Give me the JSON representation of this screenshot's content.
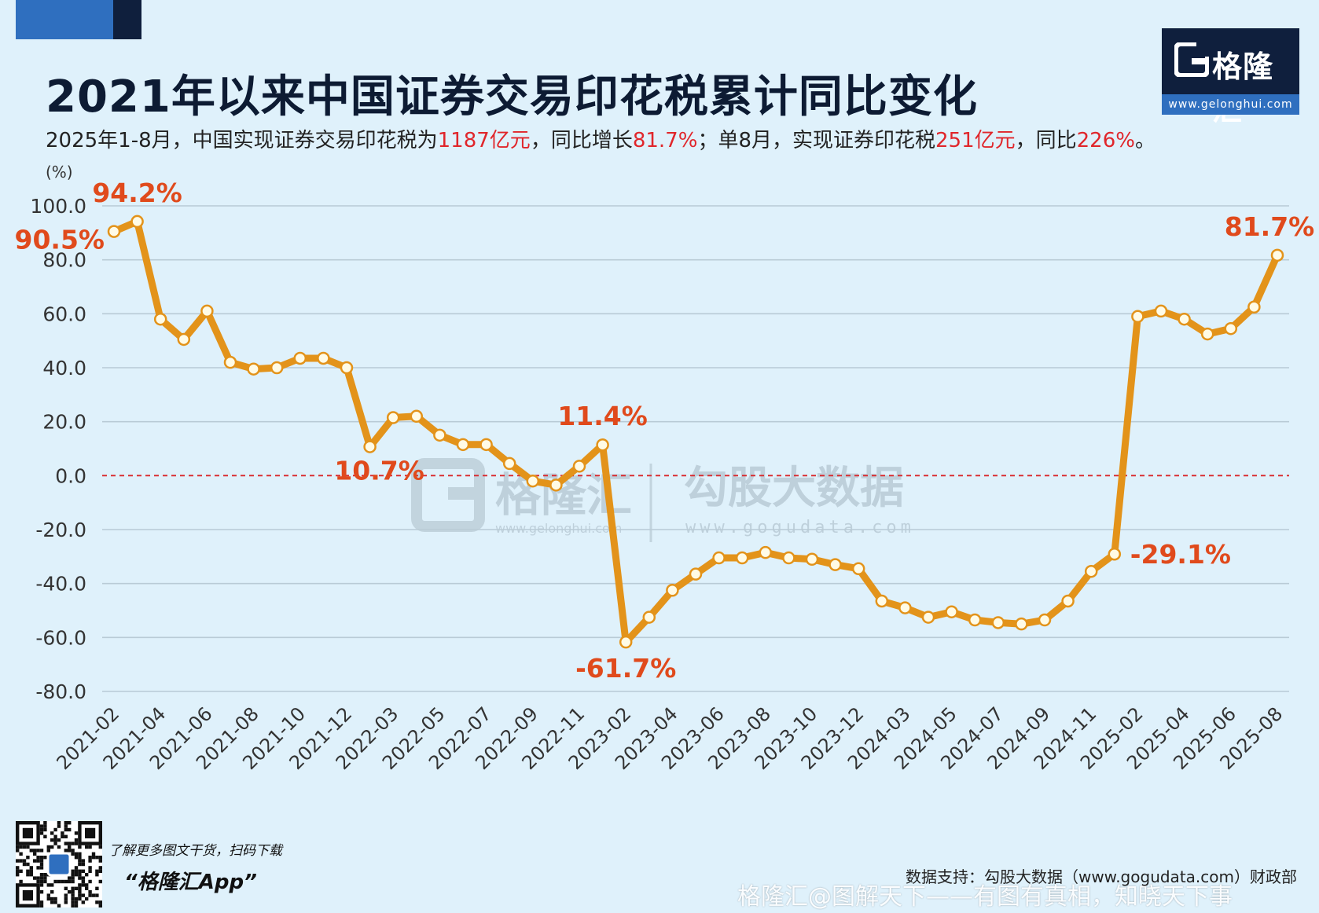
{
  "header": {
    "title": "2021年以来中国证券交易印花税累计同比变化",
    "subtitle_parts": [
      {
        "text": "2025年1-8月，中国实现证券交易印花税为",
        "red": false
      },
      {
        "text": "1187亿元",
        "red": true
      },
      {
        "text": "，同比增长",
        "red": false
      },
      {
        "text": "81.7%",
        "red": true
      },
      {
        "text": "；单8月，实现证券印花税",
        "red": false
      },
      {
        "text": "251亿元",
        "red": true
      },
      {
        "text": "，同比",
        "red": false
      },
      {
        "text": "226%",
        "red": true
      },
      {
        "text": "。",
        "red": false
      }
    ]
  },
  "logo": {
    "text": "格隆汇",
    "url": "www.gelonghui.com",
    "icon": "gelonghui-g-icon"
  },
  "watermark": {
    "left_name": "格隆汇",
    "left_url": "www.gelonghui.com",
    "right_name": "勾股大数据",
    "right_url": "www.gogudata.com"
  },
  "footer": {
    "scan_text": "了解更多图文干货，扫码下载",
    "app_name": "“格隆汇App”",
    "source": "数据支持：勾股大数据（www.gogudata.com）财政部",
    "bottom_watermark": "格隆汇@图解天下——有图有真相，知晓天下事"
  },
  "colors": {
    "line": "#e3931a",
    "label": "#e04a1c",
    "zero_line": "#d9262b",
    "grid": "#b9cbd6",
    "accent_red": "#e0262b"
  },
  "chart_data": {
    "type": "line",
    "ylabel": "(%)",
    "ylim": [
      -80,
      100
    ],
    "yticks": [
      100,
      80,
      60,
      40,
      20,
      0,
      -20,
      -40,
      -60,
      -80
    ],
    "ytick_labels": [
      "100.0",
      "80.0",
      "60.0",
      "40.0",
      "20.0",
      "0.0",
      "-20.0",
      "-40.0",
      "-60.0",
      "-80.0"
    ],
    "grid": true,
    "x": [
      "2021-02",
      "2021-03",
      "2021-04",
      "2021-05",
      "2021-06",
      "2021-07",
      "2021-08",
      "2021-09",
      "2021-10",
      "2021-11",
      "2021-12",
      "2022-01",
      "2022-03",
      "2022-04",
      "2022-05",
      "2022-06",
      "2022-07",
      "2022-08",
      "2022-09",
      "2022-10",
      "2022-11",
      "2022-12",
      "2023-02",
      "2023-03",
      "2023-04",
      "2023-05",
      "2023-06",
      "2023-07",
      "2023-08",
      "2023-09",
      "2023-10",
      "2023-11",
      "2023-12",
      "2024-01",
      "2024-03",
      "2024-04",
      "2024-05",
      "2024-06",
      "2024-07",
      "2024-08",
      "2024-09",
      "2024-10",
      "2024-11",
      "2024-12",
      "2025-02",
      "2025-03",
      "2025-04",
      "2025-05",
      "2025-06",
      "2025-07",
      "2025-08"
    ],
    "xtick_labels": [
      "2021-02",
      "2021-04",
      "2021-06",
      "2021-08",
      "2021-10",
      "2021-12",
      "2022-03",
      "2022-05",
      "2022-07",
      "2022-09",
      "2022-11",
      "2023-02",
      "2023-04",
      "2023-06",
      "2023-08",
      "2023-10",
      "2023-12",
      "2024-03",
      "2024-05",
      "2024-07",
      "2024-09",
      "2024-11",
      "2025-02",
      "2025-04",
      "2025-06",
      "2025-08"
    ],
    "series": [
      {
        "values": [
          90.5,
          94.2,
          58,
          50.5,
          61,
          42,
          39.5,
          40,
          43.5,
          43.5,
          40,
          10.7,
          21.5,
          22,
          15,
          11.5,
          11.5,
          4.5,
          -2,
          -3.5,
          3.5,
          11.4,
          -61.7,
          -52.5,
          -42.5,
          -36.5,
          -30.5,
          -30.5,
          -28.5,
          -30.5,
          -31,
          -33,
          -34.5,
          -46.5,
          -49,
          -52.5,
          -50.5,
          -53.5,
          -54.5,
          -55,
          -53.5,
          -46.5,
          -35.5,
          -29.1,
          59,
          61,
          58,
          52.5,
          54.5,
          62.5,
          81.7
        ]
      }
    ],
    "annotations": [
      {
        "index": 0,
        "text": "90.5%",
        "placement": "left"
      },
      {
        "index": 1,
        "text": "94.2%",
        "placement": "above"
      },
      {
        "index": 11,
        "text": "10.7%",
        "placement": "below"
      },
      {
        "index": 21,
        "text": "11.4%",
        "placement": "above"
      },
      {
        "index": 22,
        "text": "-61.7%",
        "placement": "below"
      },
      {
        "index": 43,
        "text": "-29.1%",
        "placement": "right"
      },
      {
        "index": 50,
        "text": "81.7%",
        "placement": "above"
      }
    ],
    "zero_line": true
  }
}
